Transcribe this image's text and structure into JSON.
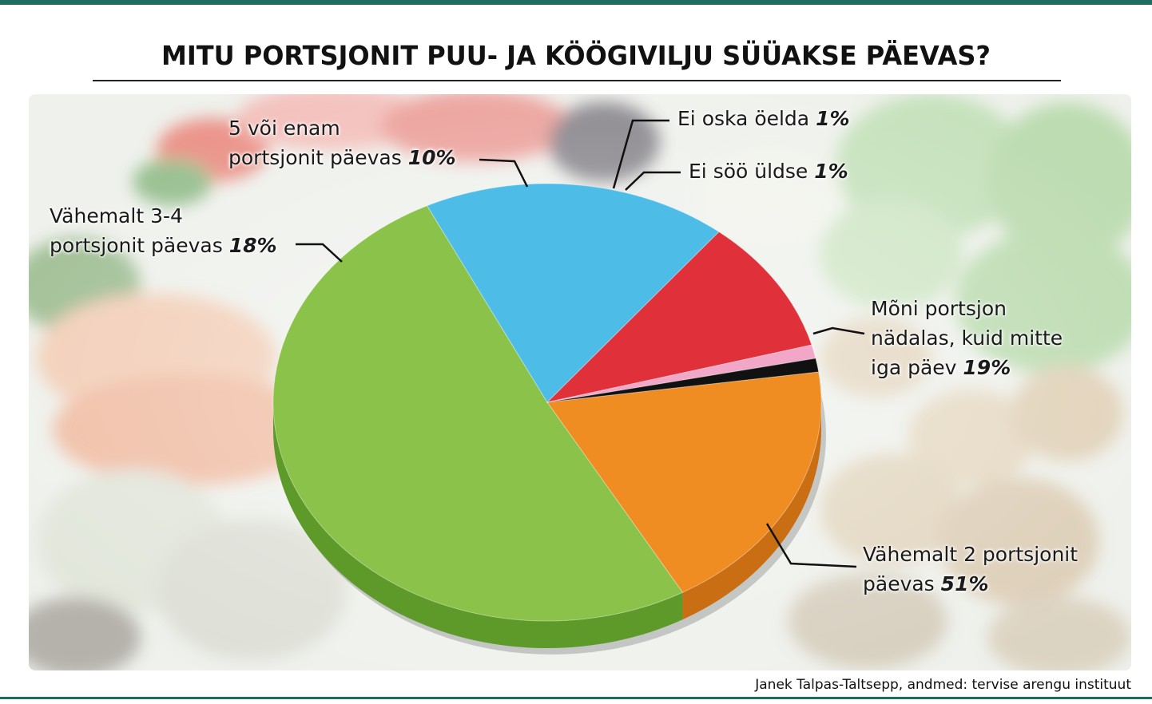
{
  "chart_data": {
    "type": "pie",
    "title": "MITU PORTSJONIT PUU- JA KÖÖGIVILJU SÜÜAKSE PÄEVAS?",
    "slices": [
      {
        "label_lines": [
          "Mõni portsjon",
          "nädalas, kuid mitte",
          "iga päev"
        ],
        "value": 19,
        "value_text": "19%",
        "color": "#ef8c22",
        "side": "#c96e12"
      },
      {
        "label_lines": [
          "Vähemalt 2 portsjonit",
          "päevas"
        ],
        "value": 51,
        "value_text": "51%",
        "color": "#8bc34a",
        "side": "#5e9a2a"
      },
      {
        "label_lines": [
          "Vähemalt 3-4",
          "portsjonit päevas"
        ],
        "value": 18,
        "value_text": "18%",
        "color": "#4dbde8",
        "side": "#2f94bd"
      },
      {
        "label_lines": [
          "5 või enam",
          "portsjonit päevas"
        ],
        "value": 10,
        "value_text": "10%",
        "color": "#e0303a",
        "side": "#b0202a"
      },
      {
        "label_lines": [
          "Ei oska öelda"
        ],
        "value": 1,
        "value_text": "1%",
        "color": "#f2a7c8",
        "side": "#d488a8"
      },
      {
        "label_lines": [
          "Ei söö üldse"
        ],
        "value": 1,
        "value_text": "1%",
        "color": "#111111",
        "side": "#000000"
      }
    ],
    "legend": "none"
  },
  "credit": "Janek Talpas-Taltsepp, andmed: tervise arengu instituut"
}
